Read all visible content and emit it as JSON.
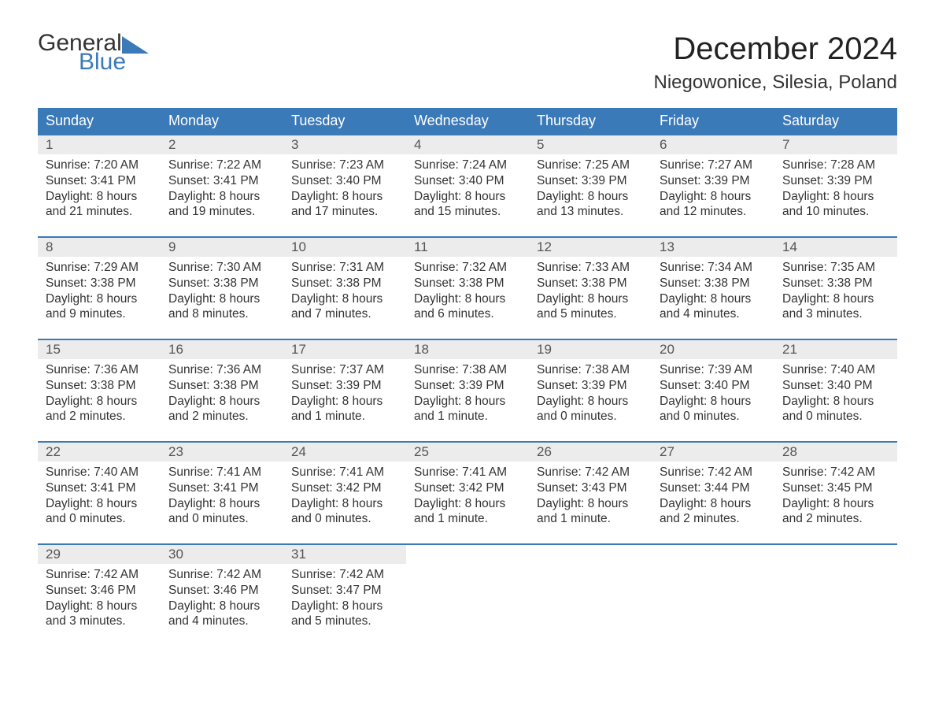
{
  "brand": {
    "word1": "General",
    "word2": "Blue",
    "accent_color": "#3b7ab8"
  },
  "title": "December 2024",
  "location": "Niegowonice, Silesia, Poland",
  "colors": {
    "header_bg": "#3b7ab8",
    "header_text": "#ffffff",
    "daynum_bg": "#ececec",
    "body_text": "#333333",
    "rule": "#3b7ab8",
    "page_bg": "#ffffff"
  },
  "days_of_week": [
    "Sunday",
    "Monday",
    "Tuesday",
    "Wednesday",
    "Thursday",
    "Friday",
    "Saturday"
  ],
  "weeks": [
    [
      {
        "n": "1",
        "sunrise": "Sunrise: 7:20 AM",
        "sunset": "Sunset: 3:41 PM",
        "d1": "Daylight: 8 hours",
        "d2": "and 21 minutes."
      },
      {
        "n": "2",
        "sunrise": "Sunrise: 7:22 AM",
        "sunset": "Sunset: 3:41 PM",
        "d1": "Daylight: 8 hours",
        "d2": "and 19 minutes."
      },
      {
        "n": "3",
        "sunrise": "Sunrise: 7:23 AM",
        "sunset": "Sunset: 3:40 PM",
        "d1": "Daylight: 8 hours",
        "d2": "and 17 minutes."
      },
      {
        "n": "4",
        "sunrise": "Sunrise: 7:24 AM",
        "sunset": "Sunset: 3:40 PM",
        "d1": "Daylight: 8 hours",
        "d2": "and 15 minutes."
      },
      {
        "n": "5",
        "sunrise": "Sunrise: 7:25 AM",
        "sunset": "Sunset: 3:39 PM",
        "d1": "Daylight: 8 hours",
        "d2": "and 13 minutes."
      },
      {
        "n": "6",
        "sunrise": "Sunrise: 7:27 AM",
        "sunset": "Sunset: 3:39 PM",
        "d1": "Daylight: 8 hours",
        "d2": "and 12 minutes."
      },
      {
        "n": "7",
        "sunrise": "Sunrise: 7:28 AM",
        "sunset": "Sunset: 3:39 PM",
        "d1": "Daylight: 8 hours",
        "d2": "and 10 minutes."
      }
    ],
    [
      {
        "n": "8",
        "sunrise": "Sunrise: 7:29 AM",
        "sunset": "Sunset: 3:38 PM",
        "d1": "Daylight: 8 hours",
        "d2": "and 9 minutes."
      },
      {
        "n": "9",
        "sunrise": "Sunrise: 7:30 AM",
        "sunset": "Sunset: 3:38 PM",
        "d1": "Daylight: 8 hours",
        "d2": "and 8 minutes."
      },
      {
        "n": "10",
        "sunrise": "Sunrise: 7:31 AM",
        "sunset": "Sunset: 3:38 PM",
        "d1": "Daylight: 8 hours",
        "d2": "and 7 minutes."
      },
      {
        "n": "11",
        "sunrise": "Sunrise: 7:32 AM",
        "sunset": "Sunset: 3:38 PM",
        "d1": "Daylight: 8 hours",
        "d2": "and 6 minutes."
      },
      {
        "n": "12",
        "sunrise": "Sunrise: 7:33 AM",
        "sunset": "Sunset: 3:38 PM",
        "d1": "Daylight: 8 hours",
        "d2": "and 5 minutes."
      },
      {
        "n": "13",
        "sunrise": "Sunrise: 7:34 AM",
        "sunset": "Sunset: 3:38 PM",
        "d1": "Daylight: 8 hours",
        "d2": "and 4 minutes."
      },
      {
        "n": "14",
        "sunrise": "Sunrise: 7:35 AM",
        "sunset": "Sunset: 3:38 PM",
        "d1": "Daylight: 8 hours",
        "d2": "and 3 minutes."
      }
    ],
    [
      {
        "n": "15",
        "sunrise": "Sunrise: 7:36 AM",
        "sunset": "Sunset: 3:38 PM",
        "d1": "Daylight: 8 hours",
        "d2": "and 2 minutes."
      },
      {
        "n": "16",
        "sunrise": "Sunrise: 7:36 AM",
        "sunset": "Sunset: 3:38 PM",
        "d1": "Daylight: 8 hours",
        "d2": "and 2 minutes."
      },
      {
        "n": "17",
        "sunrise": "Sunrise: 7:37 AM",
        "sunset": "Sunset: 3:39 PM",
        "d1": "Daylight: 8 hours",
        "d2": "and 1 minute."
      },
      {
        "n": "18",
        "sunrise": "Sunrise: 7:38 AM",
        "sunset": "Sunset: 3:39 PM",
        "d1": "Daylight: 8 hours",
        "d2": "and 1 minute."
      },
      {
        "n": "19",
        "sunrise": "Sunrise: 7:38 AM",
        "sunset": "Sunset: 3:39 PM",
        "d1": "Daylight: 8 hours",
        "d2": "and 0 minutes."
      },
      {
        "n": "20",
        "sunrise": "Sunrise: 7:39 AM",
        "sunset": "Sunset: 3:40 PM",
        "d1": "Daylight: 8 hours",
        "d2": "and 0 minutes."
      },
      {
        "n": "21",
        "sunrise": "Sunrise: 7:40 AM",
        "sunset": "Sunset: 3:40 PM",
        "d1": "Daylight: 8 hours",
        "d2": "and 0 minutes."
      }
    ],
    [
      {
        "n": "22",
        "sunrise": "Sunrise: 7:40 AM",
        "sunset": "Sunset: 3:41 PM",
        "d1": "Daylight: 8 hours",
        "d2": "and 0 minutes."
      },
      {
        "n": "23",
        "sunrise": "Sunrise: 7:41 AM",
        "sunset": "Sunset: 3:41 PM",
        "d1": "Daylight: 8 hours",
        "d2": "and 0 minutes."
      },
      {
        "n": "24",
        "sunrise": "Sunrise: 7:41 AM",
        "sunset": "Sunset: 3:42 PM",
        "d1": "Daylight: 8 hours",
        "d2": "and 0 minutes."
      },
      {
        "n": "25",
        "sunrise": "Sunrise: 7:41 AM",
        "sunset": "Sunset: 3:42 PM",
        "d1": "Daylight: 8 hours",
        "d2": "and 1 minute."
      },
      {
        "n": "26",
        "sunrise": "Sunrise: 7:42 AM",
        "sunset": "Sunset: 3:43 PM",
        "d1": "Daylight: 8 hours",
        "d2": "and 1 minute."
      },
      {
        "n": "27",
        "sunrise": "Sunrise: 7:42 AM",
        "sunset": "Sunset: 3:44 PM",
        "d1": "Daylight: 8 hours",
        "d2": "and 2 minutes."
      },
      {
        "n": "28",
        "sunrise": "Sunrise: 7:42 AM",
        "sunset": "Sunset: 3:45 PM",
        "d1": "Daylight: 8 hours",
        "d2": "and 2 minutes."
      }
    ],
    [
      {
        "n": "29",
        "sunrise": "Sunrise: 7:42 AM",
        "sunset": "Sunset: 3:46 PM",
        "d1": "Daylight: 8 hours",
        "d2": "and 3 minutes."
      },
      {
        "n": "30",
        "sunrise": "Sunrise: 7:42 AM",
        "sunset": "Sunset: 3:46 PM",
        "d1": "Daylight: 8 hours",
        "d2": "and 4 minutes."
      },
      {
        "n": "31",
        "sunrise": "Sunrise: 7:42 AM",
        "sunset": "Sunset: 3:47 PM",
        "d1": "Daylight: 8 hours",
        "d2": "and 5 minutes."
      },
      null,
      null,
      null,
      null
    ]
  ]
}
